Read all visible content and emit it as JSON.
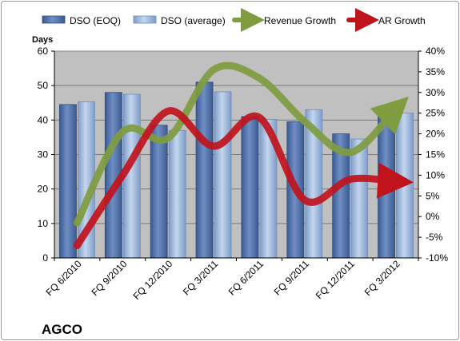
{
  "company": "AGCO",
  "chart_data": {
    "type": "bar",
    "title": "",
    "y_axis_label": "Days",
    "categories": [
      "FQ 6/2010",
      "FQ 9/2010",
      "FQ 12/2010",
      "FQ 3/2011",
      "FQ 6/2011",
      "FQ 9/2011",
      "FQ 12/2011",
      "FQ 3/2012"
    ],
    "y_ticks": [
      "0",
      "10",
      "20",
      "30",
      "40",
      "50",
      "60"
    ],
    "y2_ticks": [
      "-10%",
      "-5%",
      "0%",
      "5%",
      "10%",
      "15%",
      "20%",
      "25%",
      "30%",
      "35%",
      "40%"
    ],
    "ylim": [
      0,
      60
    ],
    "y2lim": [
      -10,
      40
    ],
    "grid": "horizontal",
    "legend_position": "top",
    "series": [
      {
        "name": "DSO (EOQ)",
        "kind": "bar",
        "axis": "left",
        "color": "#4f6fa8",
        "values": [
          44.5,
          48,
          38.5,
          51,
          41,
          39.5,
          36,
          44
        ]
      },
      {
        "name": "DSO (average)",
        "kind": "bar",
        "axis": "left",
        "color": "#9ab4d8",
        "values": [
          45.3,
          47.5,
          37,
          48.2,
          40.2,
          43,
          34.5,
          42
        ]
      },
      {
        "name": "Revenue Growth",
        "kind": "line",
        "axis": "right",
        "unit": "%",
        "color": "#7f9c3f",
        "values": [
          -1.5,
          20.5,
          19,
          35.5,
          33.5,
          23,
          15.5,
          26
        ]
      },
      {
        "name": "AR Growth",
        "kind": "line",
        "axis": "right",
        "unit": "%",
        "color": "#c0141d",
        "values": [
          -7,
          10,
          25.5,
          17,
          24,
          4,
          9,
          8.5
        ]
      }
    ]
  }
}
